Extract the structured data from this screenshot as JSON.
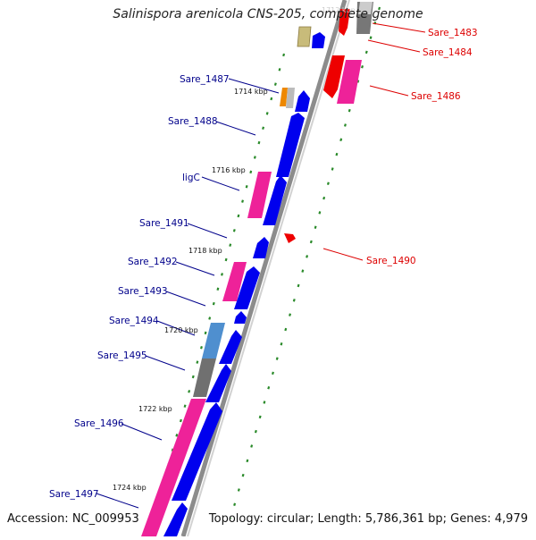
{
  "title": "Salinispora arenicola CNS-205, complete genome",
  "footer": {
    "accession": "Accession: NC_009953",
    "summary": "Topology: circular; Length: 5,786,361 bp; Genes: 4,979"
  },
  "colors": {
    "forward_label": "#00008b",
    "reverse_label": "#dd0000",
    "backbone": "#8c8c8c",
    "tick_marks": "#2a8a2a"
  },
  "genes": [
    {
      "name": "Sare_1483",
      "strand": "reverse"
    },
    {
      "name": "Sare_1484",
      "strand": "reverse"
    },
    {
      "name": "Sare_1486",
      "strand": "reverse"
    },
    {
      "name": "Sare_1487",
      "strand": "forward"
    },
    {
      "name": "Sare_1488",
      "strand": "forward"
    },
    {
      "name": "ligC",
      "strand": "forward"
    },
    {
      "name": "Sare_1490",
      "strand": "reverse"
    },
    {
      "name": "Sare_1491",
      "strand": "forward"
    },
    {
      "name": "Sare_1492",
      "strand": "forward"
    },
    {
      "name": "Sare_1493",
      "strand": "forward"
    },
    {
      "name": "Sare_1494",
      "strand": "forward"
    },
    {
      "name": "Sare_1495",
      "strand": "forward"
    },
    {
      "name": "Sare_1496",
      "strand": "forward"
    },
    {
      "name": "Sare_1497",
      "strand": "forward"
    }
  ],
  "position_ticks": [
    "1714 kbp",
    "1716 kbp",
    "1718 kbp",
    "1720 kbp",
    "1722 kbp",
    "1724 kbp"
  ],
  "top_tick_faint": "1712 kbp"
}
